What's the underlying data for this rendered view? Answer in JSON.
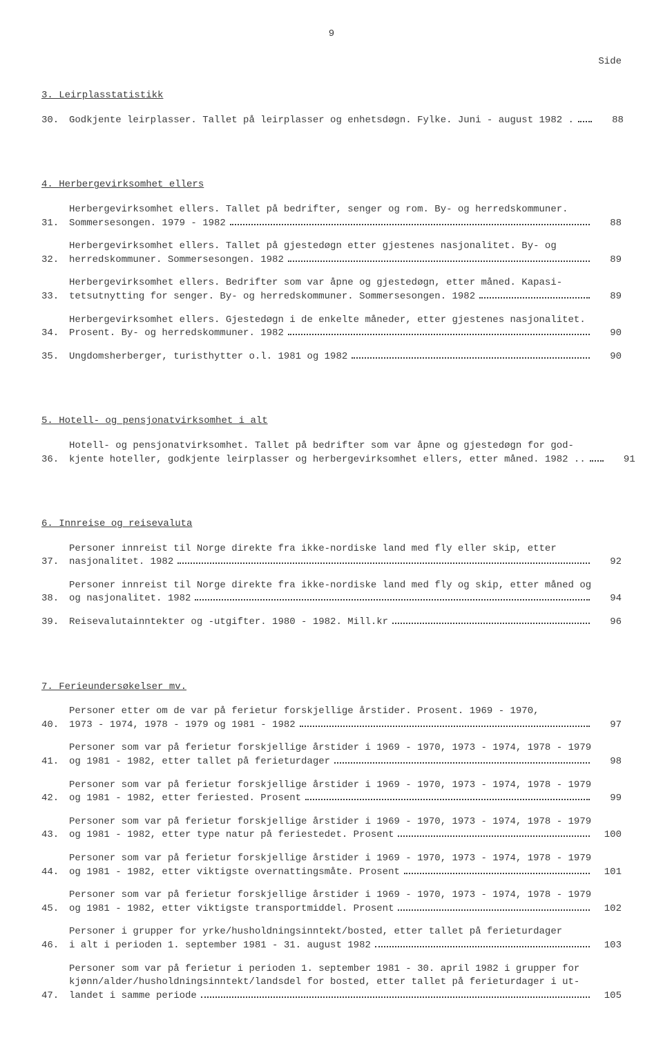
{
  "pageNumberTop": "9",
  "sideLabel": "Side",
  "sections": [
    {
      "heading": "3.  Leirplasstatistikk",
      "entries": [
        {
          "num": "30.",
          "lines": [
            "Godkjente leirplasser.  Tallet på leirplasser og enhetsdøgn.  Fylke.  Juni - august 1982 ."
          ],
          "page": "88"
        }
      ]
    },
    {
      "heading": "4.  Herbergevirksomhet ellers",
      "entries": [
        {
          "num": "31.",
          "lines": [
            "Herbergevirksomhet ellers.  Tallet på bedrifter, senger og rom.  By- og herredskommuner.",
            "Sommersesongen.  1979 - 1982"
          ],
          "page": "88"
        },
        {
          "num": "32.",
          "lines": [
            "Herbergevirksomhet ellers.  Tallet på gjestedøgn etter gjestenes nasjonalitet.  By- og",
            "herredskommuner.  Sommersesongen.  1982"
          ],
          "page": "89"
        },
        {
          "num": "33.",
          "lines": [
            "Herbergevirksomhet ellers.  Bedrifter som var åpne og gjestedøgn, etter måned.  Kapasi-",
            "tetsutnytting for senger.  By- og herredskommuner.  Sommersesongen.  1982"
          ],
          "page": "89"
        },
        {
          "num": "34.",
          "lines": [
            "Herbergevirksomhet ellers.  Gjestedøgn i de enkelte måneder, etter gjestenes nasjonalitet.",
            "Prosent.  By- og herredskommuner.  1982"
          ],
          "page": "90"
        },
        {
          "num": "35.",
          "lines": [
            "Ungdomsherberger, turisthytter o.l.  1981 og 1982"
          ],
          "page": "90"
        }
      ]
    },
    {
      "heading": "5.  Hotell- og pensjonatvirksomhet i alt",
      "entries": [
        {
          "num": "36.",
          "lines": [
            "Hotell- og pensjonatvirksomhet.  Tallet på bedrifter som var åpne og gjestedøgn for god-",
            "kjente hoteller, godkjente leirplasser og herbergevirksomhet ellers, etter måned.  1982 .."
          ],
          "page": "91"
        }
      ]
    },
    {
      "heading": "6.  Innreise og reisevaluta",
      "entries": [
        {
          "num": "37.",
          "lines": [
            "Personer innreist til Norge direkte fra ikke-nordiske land med fly eller skip, etter",
            "nasjonalitet.  1982"
          ],
          "page": "92"
        },
        {
          "num": "38.",
          "lines": [
            "Personer innreist til Norge direkte fra ikke-nordiske land med fly og skip, etter måned og",
            "og nasjonalitet.  1982"
          ],
          "page": "94"
        },
        {
          "num": "39.",
          "lines": [
            "Reisevalutainntekter og -utgifter.  1980 - 1982.  Mill.kr"
          ],
          "page": "96"
        }
      ]
    },
    {
      "heading": "7.  Ferieundersøkelser mv.",
      "entries": [
        {
          "num": "40.",
          "lines": [
            "Personer etter om de var på ferietur forskjellige årstider.  Prosent.  1969 - 1970,",
            "1973 - 1974, 1978 - 1979 og 1981 - 1982"
          ],
          "page": "97"
        },
        {
          "num": "41.",
          "lines": [
            "Personer som var på ferietur forskjellige årstider i 1969 - 1970, 1973 - 1974, 1978 - 1979",
            "og 1981 - 1982, etter tallet på ferieturdager"
          ],
          "page": "98"
        },
        {
          "num": "42.",
          "lines": [
            "Personer som var på ferietur forskjellige årstider i 1969 - 1970, 1973 - 1974, 1978 - 1979",
            "og 1981 - 1982, etter feriested.  Prosent"
          ],
          "page": "99"
        },
        {
          "num": "43.",
          "lines": [
            "Personer som var på ferietur forskjellige årstider i 1969 - 1970, 1973 - 1974, 1978 - 1979",
            "og 1981 - 1982, etter type natur på feriestedet.  Prosent"
          ],
          "page": "100"
        },
        {
          "num": "44.",
          "lines": [
            "Personer som var på ferietur forskjellige årstider i 1969 - 1970, 1973 - 1974, 1978 - 1979",
            "og 1981 - 1982, etter viktigste overnattingsmåte.  Prosent"
          ],
          "page": "101"
        },
        {
          "num": "45.",
          "lines": [
            "Personer som var på ferietur forskjellige årstider i 1969 - 1970, 1973 - 1974, 1978 - 1979",
            "og 1981 - 1982, etter viktigste transportmiddel.  Prosent"
          ],
          "page": "102"
        },
        {
          "num": "46.",
          "lines": [
            "Personer i grupper for yrke/husholdningsinntekt/bosted, etter tallet på ferieturdager",
            "i alt i perioden 1. september 1981 - 31. august 1982"
          ],
          "page": "103"
        },
        {
          "num": "47.",
          "lines": [
            "Personer som var på ferietur i perioden 1. september 1981 - 30. april 1982 i grupper for",
            "kjønn/alder/husholdningsinntekt/landsdel for bosted, etter tallet på ferieturdager i ut-",
            "landet i samme periode"
          ],
          "page": "105"
        }
      ]
    }
  ]
}
